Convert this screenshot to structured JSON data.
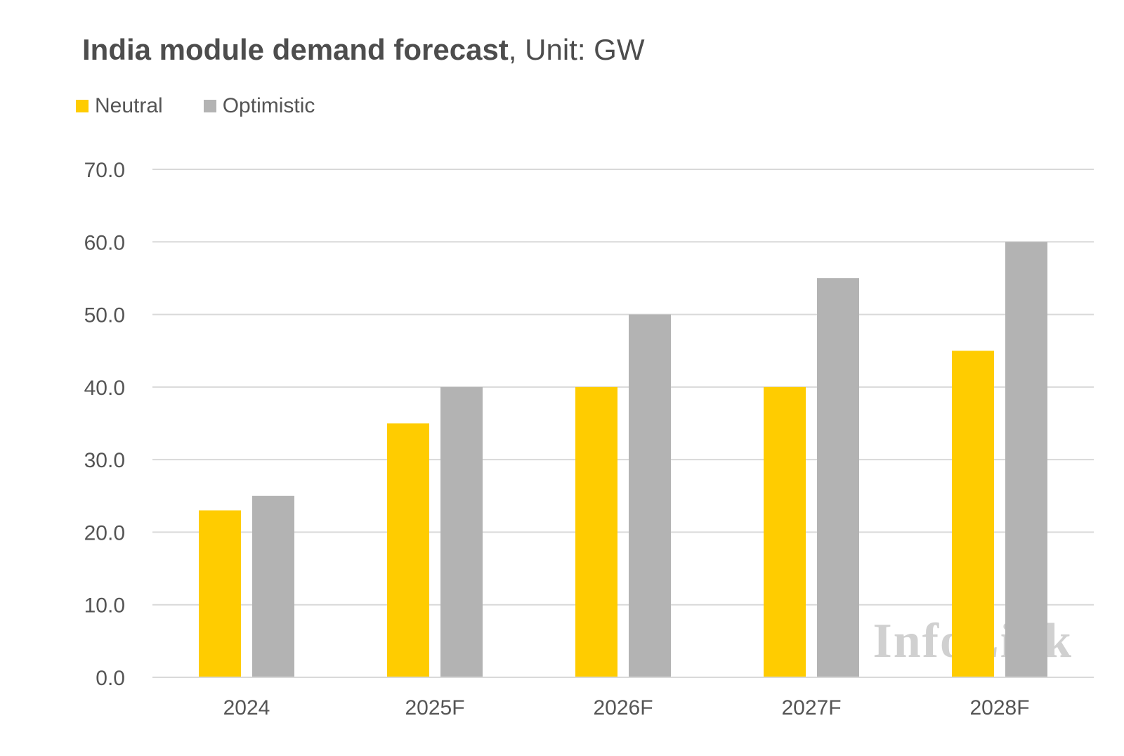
{
  "title": {
    "bold": "India module demand forecast",
    "rest": ", Unit: GW"
  },
  "legend": [
    {
      "label": "Neutral",
      "color": "#FFCC00"
    },
    {
      "label": "Optimistic",
      "color": "#B3B3B3"
    }
  ],
  "watermark": "InfoLink",
  "chart_data": {
    "type": "bar",
    "title": "India module demand forecast, Unit: GW",
    "categories": [
      "2024",
      "2025F",
      "2026F",
      "2027F",
      "2028F"
    ],
    "series": [
      {
        "name": "Neutral",
        "color": "#FFCC00",
        "values": [
          23,
          35,
          40,
          40,
          45
        ]
      },
      {
        "name": "Optimistic",
        "color": "#B3B3B3",
        "values": [
          25,
          40,
          50,
          55,
          60
        ]
      }
    ],
    "y_ticks": [
      "0.0",
      "10.0",
      "20.0",
      "30.0",
      "40.0",
      "50.0",
      "60.0",
      "70.0"
    ],
    "ylim": [
      0,
      70
    ],
    "xlabel": "",
    "ylabel": "",
    "grid": true,
    "legend_position": "top-left"
  }
}
